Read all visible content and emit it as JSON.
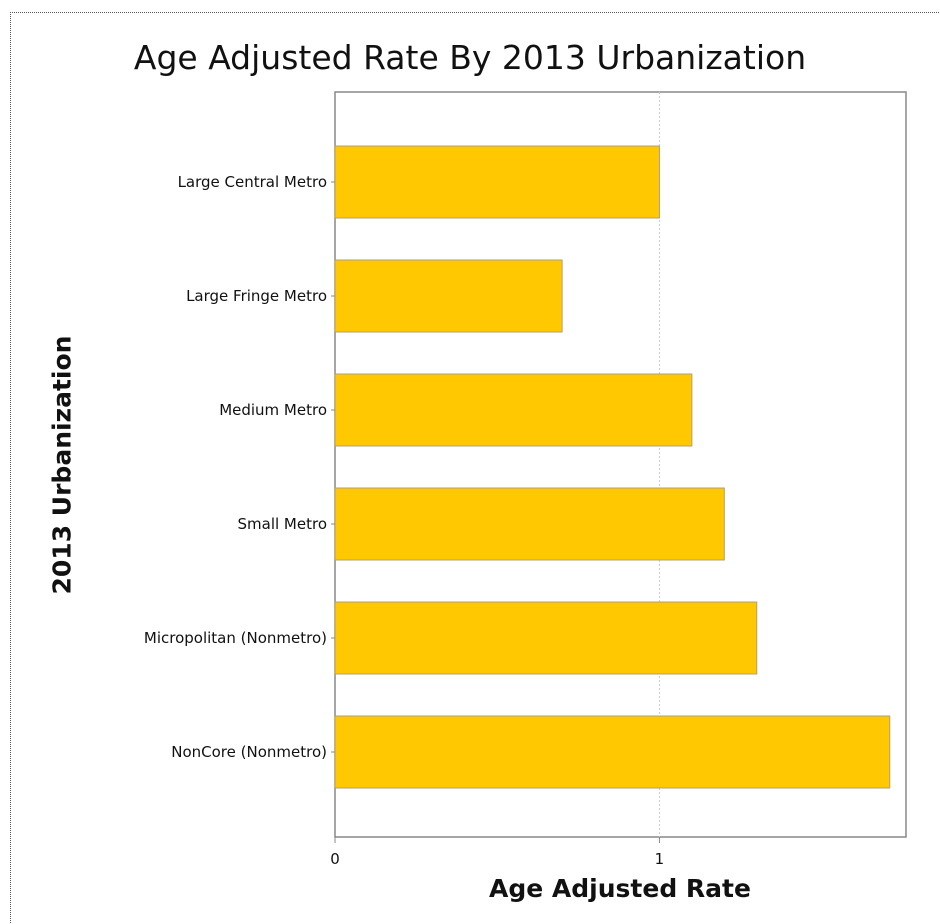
{
  "chart_data": {
    "type": "bar",
    "orientation": "horizontal",
    "title": "Age Adjusted Rate By 2013 Urbanization",
    "xlabel": "Age Adjusted Rate",
    "ylabel": "2013 Urbanization",
    "categories": [
      "Large Central Metro",
      "Large Fringe Metro",
      "Medium Metro",
      "Small Metro",
      "Micropolitan (Nonmetro)",
      "NonCore (Nonmetro)"
    ],
    "values": [
      1.0,
      0.7,
      1.1,
      1.2,
      1.3,
      1.71
    ],
    "xlim": [
      0,
      1.76
    ],
    "xticks": [
      "0",
      "1"
    ],
    "grid": "vertical dotted at 1",
    "bar_color": "#FFC800",
    "bar_border_color": "#B0A070"
  }
}
